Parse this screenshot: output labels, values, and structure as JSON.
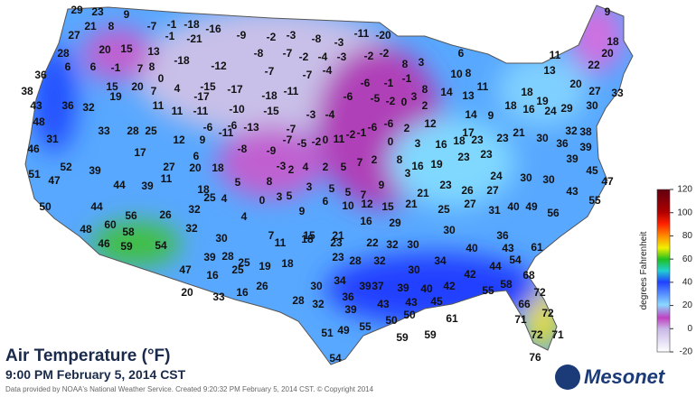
{
  "header": {
    "title": "Air Temperature (°F)",
    "subtitle": "9:00 PM February 5, 2014 CST",
    "credit": "Data provided by NOAA's National Weather Service. Created 9:20:32 PM February 5, 2014 CST. © Copyright 2014",
    "logo": "Mesonet"
  },
  "legend": {
    "label": "degrees Fahrenheit",
    "ticks": [
      -20,
      0,
      20,
      40,
      60,
      80,
      100,
      120
    ]
  },
  "stations": [
    29,
    23,
    9,
    21,
    8,
    27,
    -1,
    -18,
    -16,
    -7,
    -1,
    -21,
    -9,
    15,
    20,
    28,
    6,
    -1,
    13,
    8,
    -18,
    -12,
    -2,
    -3,
    -8,
    -3,
    -11,
    -20,
    -2,
    -2,
    8,
    3,
    6,
    10,
    8,
    36,
    6,
    7,
    15,
    20,
    0,
    4,
    -15,
    -17,
    -7,
    -8,
    -7,
    -2,
    -4,
    -3,
    -4,
    -7,
    -11,
    -18,
    38,
    43,
    36,
    32,
    19,
    7,
    11,
    11,
    -17,
    -11,
    -10,
    -6,
    -6,
    -13,
    -15,
    -7,
    -3,
    -4,
    -6,
    -6,
    -1,
    -1,
    8,
    -5,
    -2,
    0,
    3,
    2,
    12,
    14,
    13,
    11,
    14,
    9,
    17,
    48,
    31,
    33,
    28,
    25,
    12,
    9,
    6,
    -11,
    -8,
    -9,
    -7,
    -5,
    -2,
    0,
    11,
    -2,
    -1,
    -6,
    -6,
    2,
    0,
    3,
    16,
    18,
    23,
    23,
    21,
    30,
    36,
    32,
    38,
    39,
    46,
    52,
    39,
    17,
    27,
    20,
    18,
    -3,
    4,
    2,
    5,
    7,
    2,
    8,
    16,
    19,
    23,
    23,
    51,
    47,
    44,
    39,
    11,
    18,
    5,
    8,
    2,
    3,
    5,
    5,
    7,
    9,
    3,
    21,
    23,
    26,
    27,
    24,
    30,
    30,
    39,
    45,
    47,
    43,
    55,
    50,
    44,
    56,
    26,
    32,
    25,
    4,
    4,
    0,
    3,
    5,
    9,
    6,
    10,
    12,
    15,
    21,
    25,
    27,
    31,
    40,
    49,
    56,
    48,
    60,
    58,
    32,
    30,
    7,
    15,
    21,
    16,
    29,
    22,
    32,
    30,
    30,
    40,
    36,
    43,
    61,
    46,
    59,
    54,
    39,
    28,
    25,
    11,
    18,
    23,
    23,
    28,
    32,
    30,
    34,
    42,
    44,
    54,
    47,
    16,
    25,
    19,
    18,
    30,
    34,
    39,
    37,
    39,
    40,
    42,
    68,
    58,
    55,
    72,
    20,
    33,
    16,
    26,
    28,
    32,
    36,
    39,
    43,
    43,
    45,
    50,
    50,
    55,
    49,
    51,
    59,
    59,
    61,
    66,
    72,
    71,
    72,
    71,
    76,
    54,
    9,
    18,
    20,
    11,
    13,
    22,
    20,
    27,
    33,
    18,
    19,
    30,
    29,
    24,
    16,
    18
  ]
}
